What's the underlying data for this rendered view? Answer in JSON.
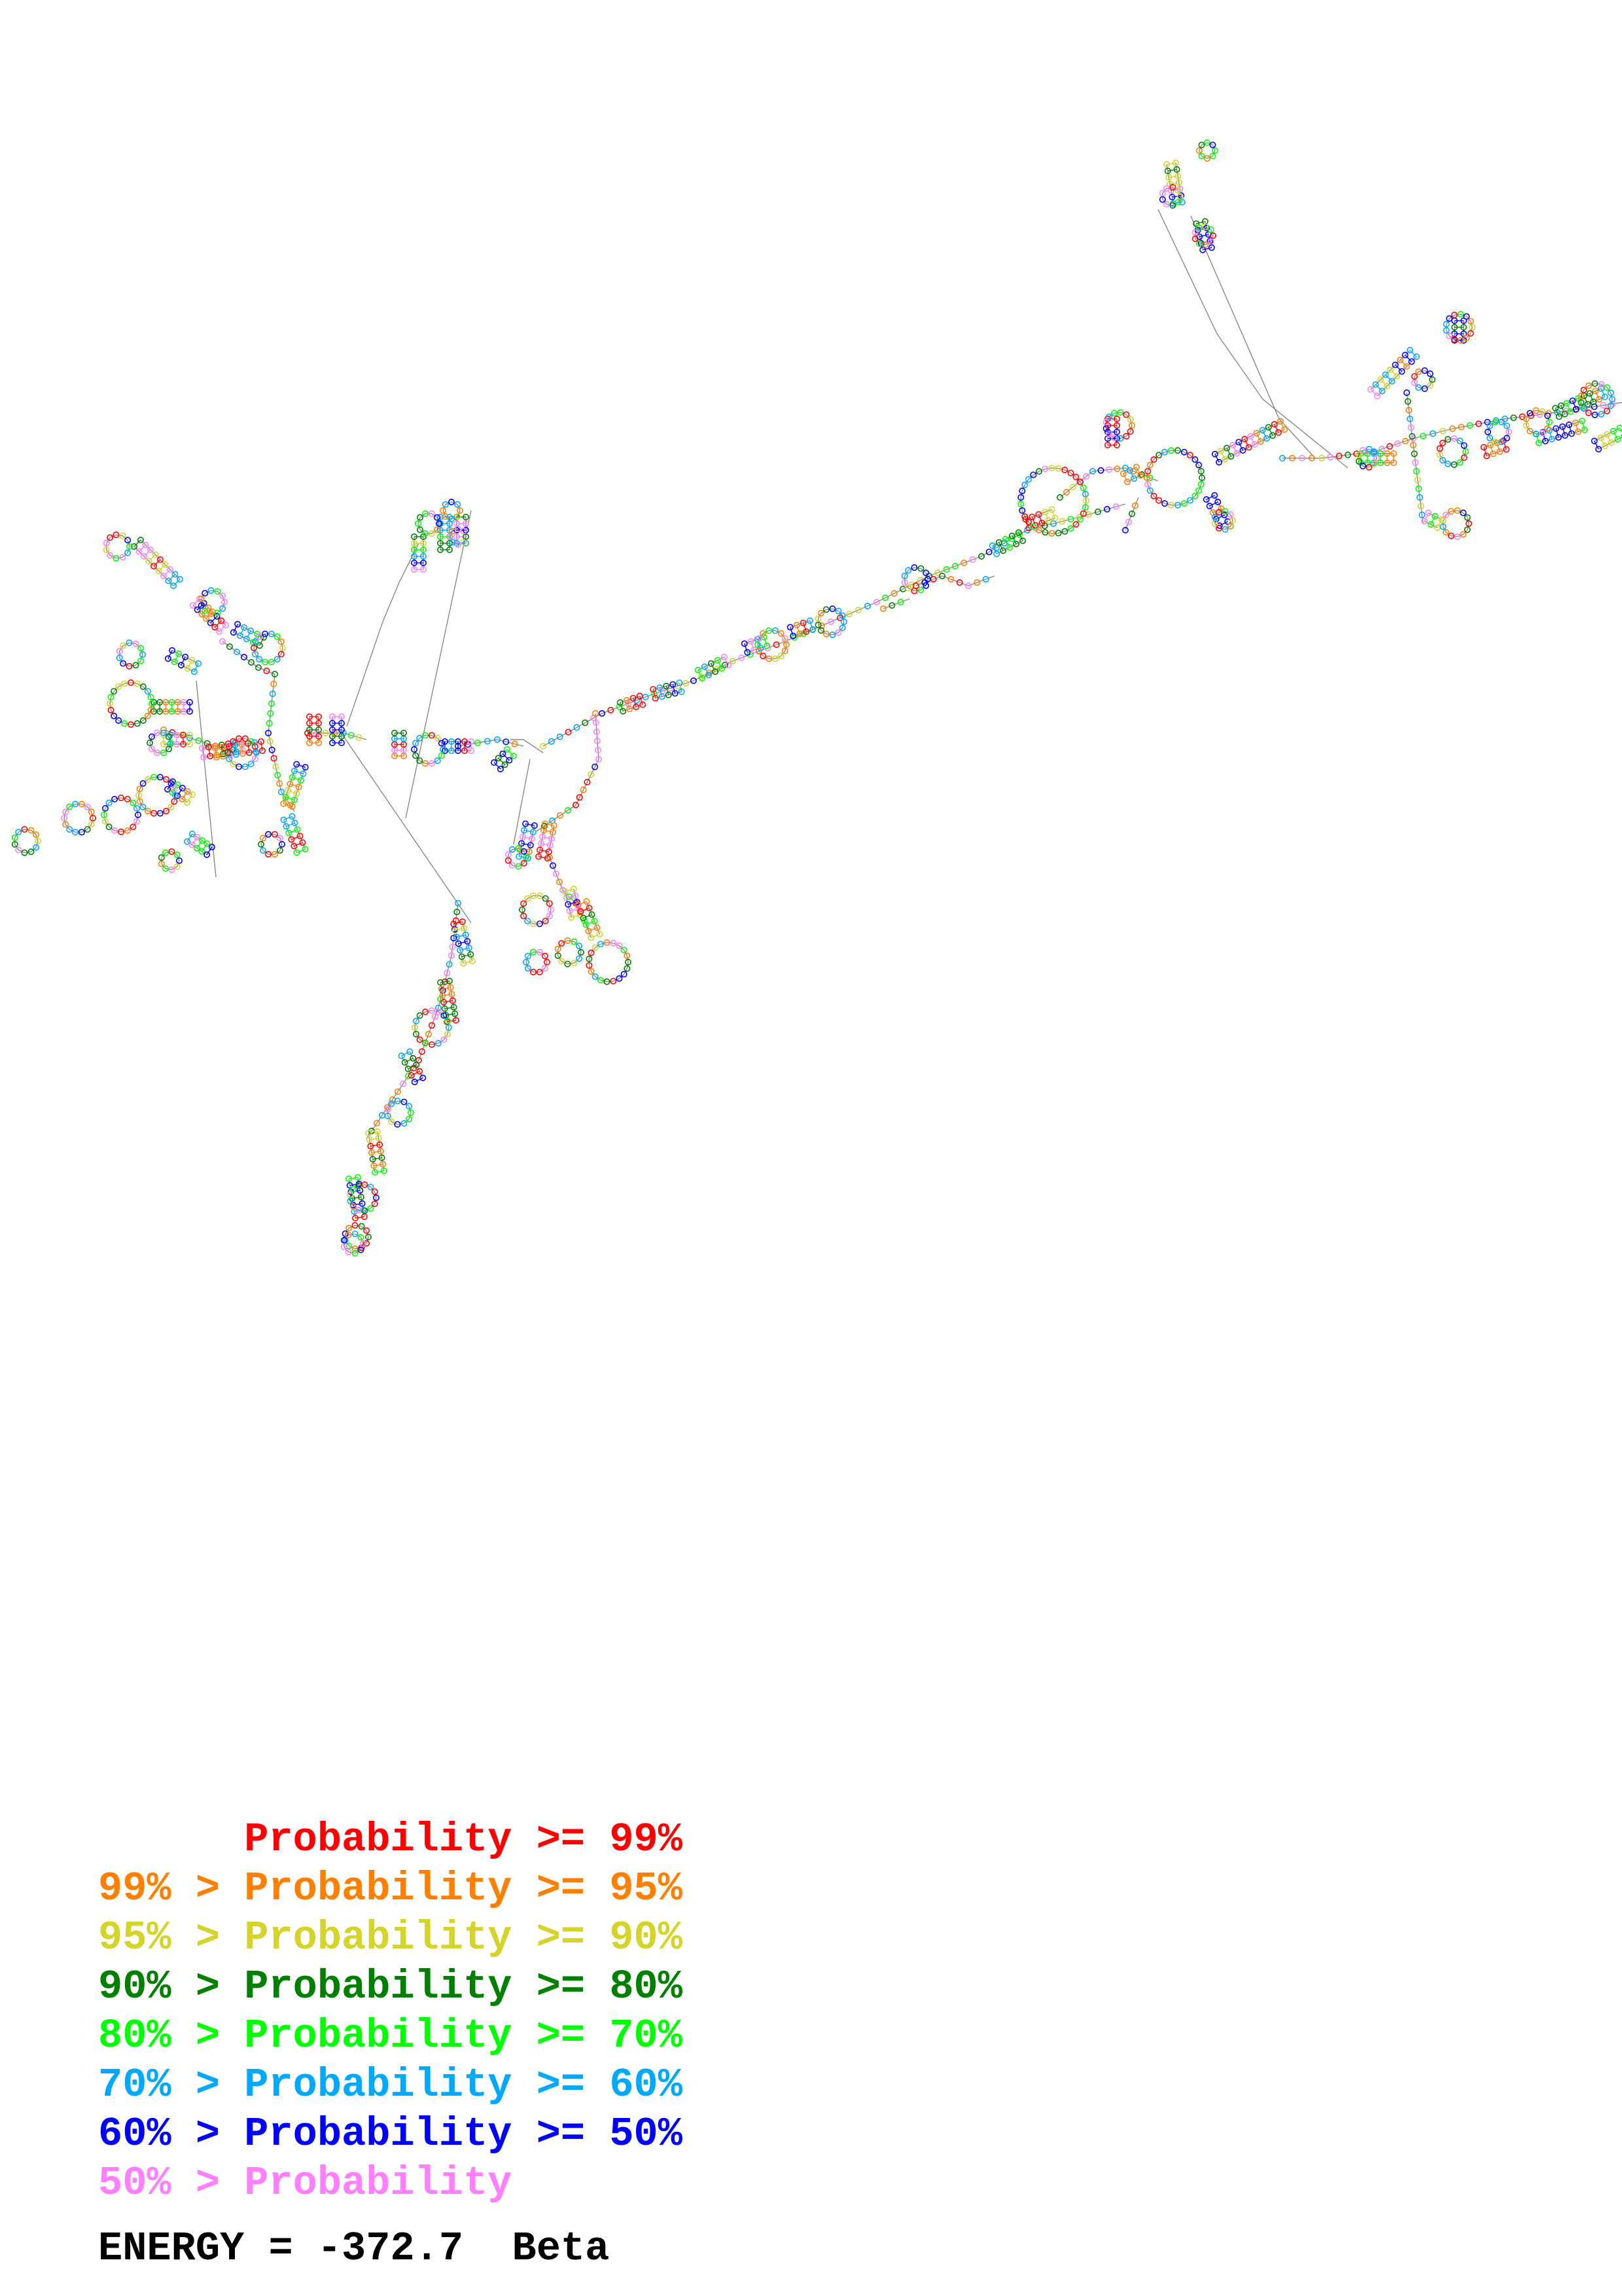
{
  "legend": {
    "rows": [
      {
        "text": "      Probability >= 99%",
        "color": "#ff0000"
      },
      {
        "text": "99% > Probability >= 95%",
        "color": "#ff8000"
      },
      {
        "text": "95% > Probability >= 90%",
        "color": "#d4d42a"
      },
      {
        "text": "90% > Probability >= 80%",
        "color": "#008000"
      },
      {
        "text": "80% > Probability >= 70%",
        "color": "#00ff00"
      },
      {
        "text": "70% > Probability >= 60%",
        "color": "#00a8ff"
      },
      {
        "text": "60% > Probability >= 50%",
        "color": "#0000ff"
      },
      {
        "text": "50% > Probability",
        "color": "#ff80ff"
      }
    ]
  },
  "energy": {
    "text": "ENERGY = -372.7  Beta"
  },
  "structure": {
    "backbone_color": "#888888",
    "probability_colors": [
      "#ff0000",
      "#ff8000",
      "#d4d42a",
      "#008000",
      "#00ff00",
      "#00a8ff",
      "#0000ff",
      "#ff80ff"
    ]
  }
}
